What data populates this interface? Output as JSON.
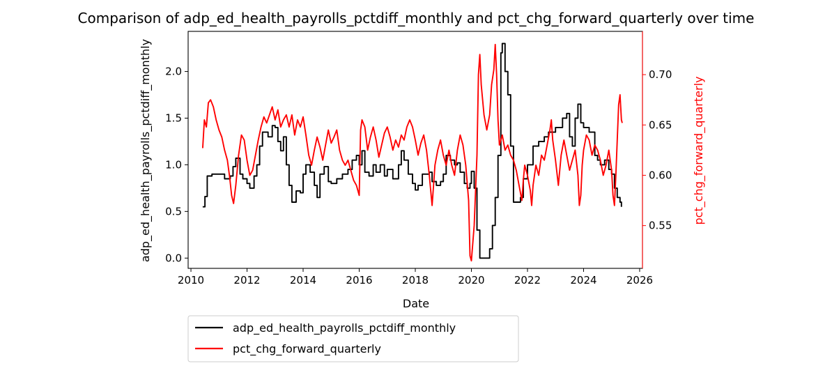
{
  "chart_data": {
    "type": "line",
    "title": "Comparison of adp_ed_health_payrolls_pctdiff_monthly and pct_chg_forward_quarterly over time",
    "xlabel": "Date",
    "ylabel_left": "adp_ed_health_payrolls_pctdiff_monthly",
    "ylabel_right": "pct_chg_forward_quarterly",
    "xlim": [
      2009.9,
      2026.1
    ],
    "ylim_left": [
      -0.11,
      2.43
    ],
    "ylim_right": [
      0.5075,
      0.743
    ],
    "x_ticks": [
      2010,
      2012,
      2014,
      2016,
      2018,
      2020,
      2022,
      2024,
      2026
    ],
    "y_ticks_left": [
      0.0,
      0.5,
      1.0,
      1.5,
      2.0
    ],
    "y_ticks_right": [
      0.55,
      0.6,
      0.65,
      0.7
    ],
    "y_tick_labels_left": [
      "0.0",
      "0.5",
      "1.0",
      "1.5",
      "2.0"
    ],
    "y_tick_labels_right": [
      "0.55",
      "0.60",
      "0.65",
      "0.70"
    ],
    "grid": false,
    "legend_position": "below",
    "series": [
      {
        "name": "adp_ed_health_payrolls_pctdiff_monthly",
        "color": "#000000",
        "axis": "left",
        "step": true,
        "points": [
          [
            2010.42,
            0.55
          ],
          [
            2010.5,
            0.66
          ],
          [
            2010.58,
            0.88
          ],
          [
            2010.75,
            0.9
          ],
          [
            2011.0,
            0.9
          ],
          [
            2011.2,
            0.85
          ],
          [
            2011.4,
            0.88
          ],
          [
            2011.5,
            0.98
          ],
          [
            2011.6,
            1.07
          ],
          [
            2011.75,
            0.9
          ],
          [
            2011.85,
            0.85
          ],
          [
            2012.0,
            0.8
          ],
          [
            2012.1,
            0.75
          ],
          [
            2012.25,
            0.88
          ],
          [
            2012.35,
            1.0
          ],
          [
            2012.45,
            1.2
          ],
          [
            2012.55,
            1.35
          ],
          [
            2012.75,
            1.3
          ],
          [
            2012.9,
            1.42
          ],
          [
            2013.0,
            1.4
          ],
          [
            2013.1,
            1.25
          ],
          [
            2013.2,
            1.15
          ],
          [
            2013.3,
            1.3
          ],
          [
            2013.4,
            1.0
          ],
          [
            2013.5,
            0.78
          ],
          [
            2013.6,
            0.6
          ],
          [
            2013.75,
            0.72
          ],
          [
            2013.9,
            0.7
          ],
          [
            2014.0,
            0.9
          ],
          [
            2014.1,
            1.0
          ],
          [
            2014.25,
            0.92
          ],
          [
            2014.4,
            0.78
          ],
          [
            2014.5,
            0.65
          ],
          [
            2014.6,
            0.9
          ],
          [
            2014.75,
            0.98
          ],
          [
            2014.9,
            0.82
          ],
          [
            2015.0,
            0.8
          ],
          [
            2015.2,
            0.85
          ],
          [
            2015.4,
            0.9
          ],
          [
            2015.6,
            0.95
          ],
          [
            2015.75,
            1.05
          ],
          [
            2015.9,
            1.1
          ],
          [
            2016.0,
            1.0
          ],
          [
            2016.1,
            1.15
          ],
          [
            2016.2,
            0.92
          ],
          [
            2016.35,
            0.88
          ],
          [
            2016.5,
            1.0
          ],
          [
            2016.6,
            0.92
          ],
          [
            2016.75,
            1.0
          ],
          [
            2016.9,
            0.88
          ],
          [
            2017.0,
            0.95
          ],
          [
            2017.2,
            0.85
          ],
          [
            2017.4,
            1.0
          ],
          [
            2017.5,
            1.15
          ],
          [
            2017.6,
            1.05
          ],
          [
            2017.75,
            0.9
          ],
          [
            2017.9,
            0.8
          ],
          [
            2018.0,
            0.73
          ],
          [
            2018.1,
            0.78
          ],
          [
            2018.25,
            0.9
          ],
          [
            2018.5,
            0.92
          ],
          [
            2018.6,
            0.82
          ],
          [
            2018.75,
            0.78
          ],
          [
            2018.9,
            0.82
          ],
          [
            2019.0,
            0.9
          ],
          [
            2019.1,
            1.1
          ],
          [
            2019.25,
            1.05
          ],
          [
            2019.4,
            1.0
          ],
          [
            2019.5,
            1.02
          ],
          [
            2019.6,
            0.92
          ],
          [
            2019.75,
            0.8
          ],
          [
            2019.85,
            0.75
          ],
          [
            2019.95,
            0.8
          ],
          [
            2020.0,
            0.93
          ],
          [
            2020.1,
            0.75
          ],
          [
            2020.2,
            0.3
          ],
          [
            2020.3,
            0.0
          ],
          [
            2020.55,
            0.0
          ],
          [
            2020.65,
            0.1
          ],
          [
            2020.75,
            0.35
          ],
          [
            2020.85,
            0.65
          ],
          [
            2020.95,
            1.1
          ],
          [
            2021.05,
            2.2
          ],
          [
            2021.1,
            2.3
          ],
          [
            2021.2,
            2.0
          ],
          [
            2021.3,
            1.75
          ],
          [
            2021.4,
            1.2
          ],
          [
            2021.5,
            0.6
          ],
          [
            2021.75,
            0.65
          ],
          [
            2021.85,
            0.85
          ],
          [
            2022.0,
            1.0
          ],
          [
            2022.2,
            1.2
          ],
          [
            2022.4,
            1.25
          ],
          [
            2022.6,
            1.3
          ],
          [
            2022.75,
            1.35
          ],
          [
            2023.0,
            1.4
          ],
          [
            2023.25,
            1.5
          ],
          [
            2023.4,
            1.55
          ],
          [
            2023.5,
            1.3
          ],
          [
            2023.6,
            1.2
          ],
          [
            2023.7,
            1.5
          ],
          [
            2023.8,
            1.65
          ],
          [
            2023.9,
            1.45
          ],
          [
            2024.0,
            1.4
          ],
          [
            2024.2,
            1.35
          ],
          [
            2024.4,
            1.1
          ],
          [
            2024.5,
            1.05
          ],
          [
            2024.6,
            1.0
          ],
          [
            2024.75,
            1.05
          ],
          [
            2024.9,
            0.95
          ],
          [
            2025.0,
            0.9
          ],
          [
            2025.1,
            0.75
          ],
          [
            2025.2,
            0.65
          ],
          [
            2025.3,
            0.6
          ],
          [
            2025.35,
            0.55
          ]
        ]
      },
      {
        "name": "pct_chg_forward_quarterly",
        "color": "#ff0000",
        "axis": "right",
        "step": false,
        "points": [
          [
            2010.42,
            0.627
          ],
          [
            2010.48,
            0.655
          ],
          [
            2010.55,
            0.648
          ],
          [
            2010.62,
            0.672
          ],
          [
            2010.7,
            0.675
          ],
          [
            2010.8,
            0.668
          ],
          [
            2010.9,
            0.655
          ],
          [
            2011.0,
            0.645
          ],
          [
            2011.1,
            0.638
          ],
          [
            2011.2,
            0.625
          ],
          [
            2011.3,
            0.615
          ],
          [
            2011.38,
            0.598
          ],
          [
            2011.45,
            0.58
          ],
          [
            2011.52,
            0.572
          ],
          [
            2011.6,
            0.59
          ],
          [
            2011.7,
            0.62
          ],
          [
            2011.8,
            0.64
          ],
          [
            2011.9,
            0.635
          ],
          [
            2012.0,
            0.615
          ],
          [
            2012.1,
            0.6
          ],
          [
            2012.2,
            0.605
          ],
          [
            2012.3,
            0.62
          ],
          [
            2012.4,
            0.635
          ],
          [
            2012.5,
            0.648
          ],
          [
            2012.6,
            0.658
          ],
          [
            2012.7,
            0.652
          ],
          [
            2012.8,
            0.66
          ],
          [
            2012.9,
            0.668
          ],
          [
            2013.0,
            0.655
          ],
          [
            2013.1,
            0.665
          ],
          [
            2013.2,
            0.648
          ],
          [
            2013.3,
            0.655
          ],
          [
            2013.4,
            0.66
          ],
          [
            2013.5,
            0.648
          ],
          [
            2013.6,
            0.66
          ],
          [
            2013.7,
            0.64
          ],
          [
            2013.8,
            0.655
          ],
          [
            2013.9,
            0.648
          ],
          [
            2014.0,
            0.658
          ],
          [
            2014.1,
            0.64
          ],
          [
            2014.2,
            0.62
          ],
          [
            2014.3,
            0.61
          ],
          [
            2014.4,
            0.625
          ],
          [
            2014.5,
            0.638
          ],
          [
            2014.6,
            0.628
          ],
          [
            2014.7,
            0.615
          ],
          [
            2014.8,
            0.63
          ],
          [
            2014.9,
            0.645
          ],
          [
            2015.0,
            0.632
          ],
          [
            2015.1,
            0.638
          ],
          [
            2015.2,
            0.645
          ],
          [
            2015.3,
            0.625
          ],
          [
            2015.4,
            0.615
          ],
          [
            2015.5,
            0.61
          ],
          [
            2015.6,
            0.615
          ],
          [
            2015.7,
            0.605
          ],
          [
            2015.8,
            0.595
          ],
          [
            2015.9,
            0.59
          ],
          [
            2016.0,
            0.58
          ],
          [
            2016.05,
            0.645
          ],
          [
            2016.1,
            0.655
          ],
          [
            2016.2,
            0.648
          ],
          [
            2016.3,
            0.625
          ],
          [
            2016.4,
            0.638
          ],
          [
            2016.5,
            0.648
          ],
          [
            2016.6,
            0.635
          ],
          [
            2016.7,
            0.618
          ],
          [
            2016.8,
            0.63
          ],
          [
            2016.9,
            0.642
          ],
          [
            2017.0,
            0.648
          ],
          [
            2017.1,
            0.638
          ],
          [
            2017.2,
            0.625
          ],
          [
            2017.3,
            0.635
          ],
          [
            2017.4,
            0.628
          ],
          [
            2017.5,
            0.64
          ],
          [
            2017.6,
            0.635
          ],
          [
            2017.7,
            0.648
          ],
          [
            2017.8,
            0.655
          ],
          [
            2017.9,
            0.648
          ],
          [
            2018.0,
            0.635
          ],
          [
            2018.1,
            0.62
          ],
          [
            2018.2,
            0.632
          ],
          [
            2018.3,
            0.64
          ],
          [
            2018.4,
            0.625
          ],
          [
            2018.5,
            0.6
          ],
          [
            2018.6,
            0.57
          ],
          [
            2018.65,
            0.59
          ],
          [
            2018.7,
            0.61
          ],
          [
            2018.8,
            0.625
          ],
          [
            2018.9,
            0.635
          ],
          [
            2019.0,
            0.62
          ],
          [
            2019.1,
            0.61
          ],
          [
            2019.2,
            0.625
          ],
          [
            2019.3,
            0.61
          ],
          [
            2019.4,
            0.6
          ],
          [
            2019.5,
            0.625
          ],
          [
            2019.6,
            0.64
          ],
          [
            2019.7,
            0.63
          ],
          [
            2019.8,
            0.61
          ],
          [
            2019.9,
            0.575
          ],
          [
            2019.95,
            0.52
          ],
          [
            2020.0,
            0.515
          ],
          [
            2020.1,
            0.55
          ],
          [
            2020.2,
            0.62
          ],
          [
            2020.25,
            0.7
          ],
          [
            2020.3,
            0.72
          ],
          [
            2020.35,
            0.69
          ],
          [
            2020.45,
            0.66
          ],
          [
            2020.55,
            0.645
          ],
          [
            2020.65,
            0.66
          ],
          [
            2020.72,
            0.69
          ],
          [
            2020.8,
            0.705
          ],
          [
            2020.85,
            0.73
          ],
          [
            2020.9,
            0.7
          ],
          [
            2020.95,
            0.655
          ],
          [
            2021.0,
            0.63
          ],
          [
            2021.1,
            0.64
          ],
          [
            2021.2,
            0.625
          ],
          [
            2021.3,
            0.63
          ],
          [
            2021.4,
            0.62
          ],
          [
            2021.5,
            0.615
          ],
          [
            2021.6,
            0.605
          ],
          [
            2021.7,
            0.59
          ],
          [
            2021.8,
            0.575
          ],
          [
            2021.85,
            0.595
          ],
          [
            2021.9,
            0.61
          ],
          [
            2022.0,
            0.6
          ],
          [
            2022.1,
            0.585
          ],
          [
            2022.15,
            0.57
          ],
          [
            2022.2,
            0.59
          ],
          [
            2022.3,
            0.61
          ],
          [
            2022.4,
            0.6
          ],
          [
            2022.5,
            0.62
          ],
          [
            2022.6,
            0.615
          ],
          [
            2022.7,
            0.63
          ],
          [
            2022.8,
            0.645
          ],
          [
            2022.85,
            0.655
          ],
          [
            2022.9,
            0.635
          ],
          [
            2023.0,
            0.615
          ],
          [
            2023.1,
            0.59
          ],
          [
            2023.2,
            0.62
          ],
          [
            2023.3,
            0.635
          ],
          [
            2023.4,
            0.62
          ],
          [
            2023.5,
            0.605
          ],
          [
            2023.6,
            0.615
          ],
          [
            2023.7,
            0.625
          ],
          [
            2023.8,
            0.6
          ],
          [
            2023.85,
            0.57
          ],
          [
            2023.9,
            0.58
          ],
          [
            2023.95,
            0.61
          ],
          [
            2024.0,
            0.625
          ],
          [
            2024.1,
            0.64
          ],
          [
            2024.2,
            0.635
          ],
          [
            2024.3,
            0.62
          ],
          [
            2024.4,
            0.63
          ],
          [
            2024.5,
            0.625
          ],
          [
            2024.6,
            0.615
          ],
          [
            2024.7,
            0.6
          ],
          [
            2024.8,
            0.61
          ],
          [
            2024.9,
            0.625
          ],
          [
            2025.0,
            0.605
          ],
          [
            2025.05,
            0.58
          ],
          [
            2025.1,
            0.57
          ],
          [
            2025.15,
            0.6
          ],
          [
            2025.2,
            0.635
          ],
          [
            2025.25,
            0.67
          ],
          [
            2025.3,
            0.68
          ],
          [
            2025.35,
            0.655
          ],
          [
            2025.38,
            0.652
          ]
        ]
      }
    ]
  }
}
